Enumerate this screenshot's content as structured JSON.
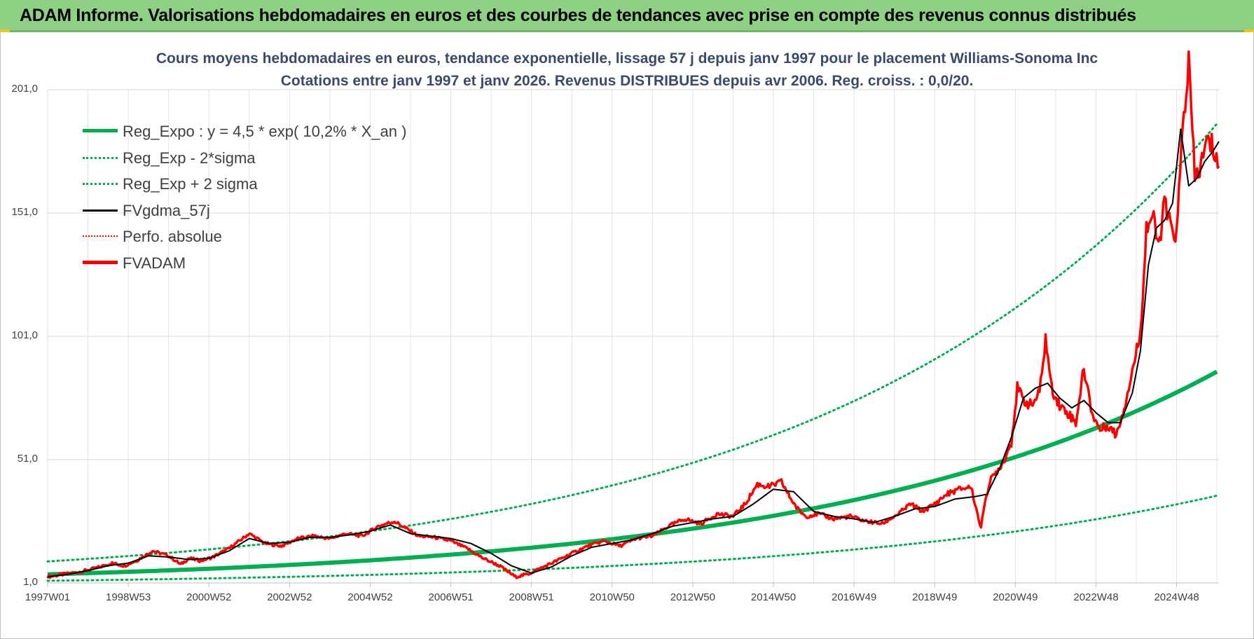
{
  "header": {
    "title": "ADAM Informe. Valorisations hebdomadaires en euros et des courbes de tendances avec prise en compte des revenus connus distribués"
  },
  "colors": {
    "banner_bg": "#8ed184",
    "regression": "#00b050",
    "fv_gdma": "#000000",
    "fv_adam": "#ff0000",
    "title_text": "#3b4a6b"
  },
  "chart_data": {
    "type": "line",
    "title_line1": "Cours moyens hebdomadaires en euros, tendance exponentielle, lissage 57 j depuis janv 1997 pour le placement Williams-Sonoma Inc",
    "title_line2": "Cotations entre janv 1997 et janv 2026. Revenus DISTRIBUES depuis avr 2006. Reg. croiss. : 0,0/20.",
    "xlabel": "",
    "ylabel": "",
    "x_unit": "year",
    "xlim": [
      1997.0,
      2026.05
    ],
    "ylim": [
      1.0,
      201.0
    ],
    "y_ticks": [
      1.0,
      51.0,
      101.0,
      151.0,
      201.0
    ],
    "y_tick_labels": [
      "1,0",
      "51,0",
      "101,0",
      "151,0",
      "201,0"
    ],
    "x_tick_labels": [
      "1997W01",
      "1998W53",
      "2000W52",
      "2002W52",
      "2004W52",
      "2006W51",
      "2008W51",
      "2010W50",
      "2012W50",
      "2014W50",
      "2016W49",
      "2018W49",
      "2020W49",
      "2022W48",
      "2024W48"
    ],
    "x_tick_values": [
      1997.0,
      1999.0,
      2001.0,
      2003.0,
      2005.0,
      2007.0,
      2009.0,
      2011.0,
      2013.0,
      2015.0,
      2017.0,
      2019.0,
      2021.0,
      2023.0,
      2025.0
    ],
    "grid": true,
    "legend_position": "top-left",
    "regression": {
      "a": 4.5,
      "rate": 0.102,
      "x_origin": 1997.0,
      "sigma_band": {
        "lower": 0.42,
        "upper": 2.16
      }
    },
    "legend": [
      {
        "label": "Reg_Expo : y = 4,5 * exp( 10,2% *  X_an )",
        "style": "thick-solid",
        "color": "#00b050"
      },
      {
        "label": "Reg_Exp - 2*sigma",
        "style": "dotted",
        "color": "#00b050"
      },
      {
        "label": "Reg_Exp + 2 sigma",
        "style": "dotted",
        "color": "#00b050"
      },
      {
        "label": "FVgdma_57j",
        "style": "solid",
        "color": "#000000"
      },
      {
        "label": "Perfo. absolue",
        "style": "dotted",
        "color": "#ff0000"
      },
      {
        "label": "FVADAM",
        "style": "thick-solid",
        "color": "#ff0000"
      }
    ],
    "series": [
      {
        "name": "FVADAM",
        "x": [
          1997.0,
          1997.4,
          1997.8,
          1998.2,
          1998.6,
          1998.9,
          1999.2,
          1999.6,
          2000.0,
          2000.3,
          2000.5,
          2000.8,
          2001.1,
          2001.5,
          2002.0,
          2002.4,
          2002.8,
          2003.2,
          2003.6,
          2004.0,
          2004.4,
          2004.8,
          2005.2,
          2005.6,
          2005.9,
          2006.2,
          2006.6,
          2007.0,
          2007.4,
          2007.8,
          2008.2,
          2008.6,
          2008.9,
          2009.1,
          2009.5,
          2010.0,
          2010.4,
          2010.8,
          2011.2,
          2011.6,
          2012.0,
          2012.4,
          2012.8,
          2013.2,
          2013.6,
          2014.0,
          2014.3,
          2014.6,
          2014.9,
          2015.2,
          2015.4,
          2015.6,
          2015.8,
          2016.1,
          2016.5,
          2016.9,
          2017.3,
          2017.7,
          2018.1,
          2018.4,
          2018.7,
          2019.0,
          2019.3,
          2019.6,
          2019.9,
          2020.15,
          2020.25,
          2020.4,
          2020.7,
          2020.9,
          2021.05,
          2021.2,
          2021.4,
          2021.6,
          2021.75,
          2021.9,
          2022.1,
          2022.3,
          2022.5,
          2022.7,
          2022.9,
          2023.1,
          2023.3,
          2023.5,
          2023.7,
          2023.9,
          2024.1,
          2024.25,
          2024.4,
          2024.55,
          2024.7,
          2024.85,
          2025.0,
          2025.15,
          2025.3,
          2025.45,
          2025.6,
          2025.75,
          2025.9,
          2026.05
        ],
        "y": [
          3.5,
          4.5,
          5.5,
          7.0,
          9.0,
          8.0,
          10.0,
          14.0,
          12.0,
          8.5,
          11.0,
          10.0,
          11.5,
          15.0,
          21.0,
          17.0,
          16.0,
          19.0,
          20.0,
          19.0,
          21.0,
          20.0,
          24.0,
          26.0,
          23.0,
          20.0,
          19.5,
          18.0,
          15.0,
          11.0,
          8.0,
          3.5,
          4.5,
          6.0,
          9.0,
          13.0,
          16.0,
          18.0,
          16.0,
          19.0,
          20.0,
          24.0,
          27.0,
          25.0,
          29.0,
          28.0,
          33.0,
          41.0,
          40.0,
          42.0,
          36.0,
          31.0,
          28.0,
          29.0,
          27.0,
          28.0,
          26.0,
          25.0,
          29.0,
          33.0,
          30.0,
          33.0,
          37.0,
          39.0,
          40.0,
          23.0,
          35.0,
          43.0,
          50.0,
          58.0,
          80.0,
          75.0,
          73.0,
          78.0,
          100.0,
          80.0,
          73.0,
          70.0,
          66.0,
          88.0,
          70.0,
          63.0,
          65.0,
          61.0,
          72.0,
          87.0,
          102.0,
          145.0,
          150.0,
          137.0,
          155.0,
          145.0,
          142.0,
          185.0,
          212.0,
          165.0,
          170.0,
          180.0,
          178.0,
          170.0
        ]
      },
      {
        "name": "FVgdma_57j",
        "x": [
          1997.0,
          1997.5,
          1998.0,
          1998.5,
          1999.0,
          1999.5,
          2000.0,
          2000.5,
          2001.0,
          2001.5,
          2002.0,
          2002.5,
          2003.0,
          2003.5,
          2004.0,
          2004.5,
          2005.0,
          2005.5,
          2006.0,
          2006.5,
          2007.0,
          2007.5,
          2008.0,
          2008.5,
          2009.0,
          2009.5,
          2010.0,
          2010.5,
          2011.0,
          2011.5,
          2012.0,
          2012.5,
          2013.0,
          2013.5,
          2014.0,
          2014.5,
          2015.0,
          2015.5,
          2016.0,
          2016.5,
          2017.0,
          2017.5,
          2018.0,
          2018.5,
          2019.0,
          2019.5,
          2020.0,
          2020.3,
          2020.6,
          2020.9,
          2021.2,
          2021.5,
          2021.8,
          2022.1,
          2022.4,
          2022.7,
          2023.0,
          2023.3,
          2023.6,
          2023.9,
          2024.1,
          2024.3,
          2024.5,
          2024.7,
          2024.9,
          2025.1,
          2025.3,
          2025.5,
          2025.7,
          2025.9,
          2026.05
        ],
        "y": [
          3.5,
          4.5,
          6.0,
          8.0,
          9.0,
          12.0,
          11.5,
          10.5,
          11.0,
          14.0,
          19.0,
          17.0,
          17.5,
          19.5,
          19.5,
          20.5,
          22.0,
          24.5,
          21.0,
          20.0,
          19.0,
          17.0,
          13.0,
          8.0,
          5.0,
          7.5,
          12.0,
          15.5,
          17.0,
          18.5,
          21.0,
          24.0,
          25.5,
          27.0,
          28.0,
          33.0,
          39.0,
          38.0,
          30.0,
          28.0,
          27.0,
          25.5,
          28.0,
          31.0,
          32.0,
          35.0,
          36.0,
          37.0,
          47.0,
          60.0,
          76.0,
          80.0,
          82.0,
          76.0,
          72.0,
          75.0,
          70.0,
          66.0,
          66.0,
          78.0,
          95.0,
          130.0,
          145.0,
          148.0,
          155.0,
          185.0,
          162.0,
          165.0,
          172.0,
          176.0,
          180.0
        ]
      }
    ]
  }
}
